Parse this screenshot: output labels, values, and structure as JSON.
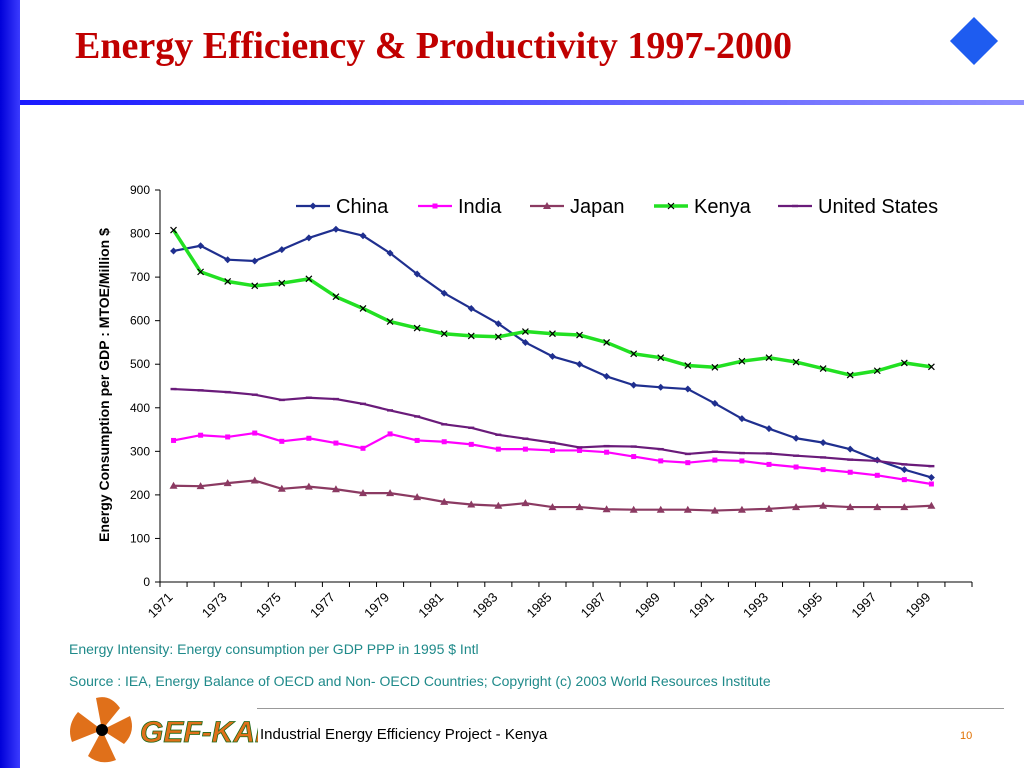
{
  "slide": {
    "title": "Energy Efficiency & Productivity 1997-2000",
    "note1": "Energy Intensity: Energy consumption per GDP PPP in 1995 $ Intl",
    "note2": "Source : IEA, Energy Balance of OECD and Non- OECD Countries; Copyright (c) 2003 World Resources Institute",
    "footer": "Industrial Energy Efficiency Project - Kenya",
    "page_number": "10",
    "logo_text": "GEF-KAM"
  },
  "chart_data": {
    "type": "line",
    "ylabel": "Energy Consumption per GDP : MTOE/Million $",
    "ylim": [
      0,
      900
    ],
    "yticks": [
      0,
      100,
      200,
      300,
      400,
      500,
      600,
      700,
      800,
      900
    ],
    "x": [
      1971,
      1972,
      1973,
      1974,
      1975,
      1976,
      1977,
      1978,
      1979,
      1980,
      1981,
      1982,
      1983,
      1984,
      1985,
      1986,
      1987,
      1988,
      1989,
      1990,
      1991,
      1992,
      1993,
      1994,
      1995,
      1996,
      1997,
      1998,
      1999,
      2000
    ],
    "xtick_labels": [
      "1971",
      "1973",
      "1975",
      "1977",
      "1979",
      "1981",
      "1983",
      "1985",
      "1987",
      "1989",
      "1991",
      "1993",
      "1995",
      "1997",
      "1999"
    ],
    "legend_position": "top",
    "grid": false,
    "series": [
      {
        "name": "China",
        "color": "#1f2f8f",
        "marker": "diamond",
        "values": [
          760,
          772,
          740,
          737,
          763,
          790,
          810,
          795,
          755,
          707,
          663,
          628,
          593,
          550,
          518,
          500,
          472,
          452,
          447,
          443,
          410,
          375,
          352,
          330,
          320,
          305,
          280,
          258,
          240,
          null
        ]
      },
      {
        "name": "India",
        "color": "#ff00ff",
        "marker": "square",
        "values": [
          325,
          337,
          333,
          342,
          323,
          330,
          319,
          307,
          340,
          325,
          322,
          316,
          305,
          305,
          302,
          302,
          298,
          288,
          278,
          274,
          280,
          278,
          270,
          264,
          258,
          252,
          245,
          235,
          225,
          null
        ]
      },
      {
        "name": "Japan",
        "color": "#8b3a62",
        "marker": "triangle",
        "values": [
          221,
          220,
          227,
          233,
          214,
          219,
          213,
          204,
          204,
          195,
          184,
          178,
          175,
          181,
          172,
          172,
          167,
          166,
          166,
          166,
          164,
          166,
          168,
          172,
          175,
          172,
          172,
          172,
          175,
          null
        ]
      },
      {
        "name": "Kenya",
        "color": "#22e022",
        "marker": "x",
        "values": [
          808,
          712,
          690,
          680,
          686,
          696,
          655,
          628,
          598,
          583,
          570,
          565,
          563,
          575,
          570,
          567,
          550,
          524,
          515,
          497,
          493,
          507,
          515,
          505,
          490,
          475,
          485,
          503,
          494,
          null
        ]
      },
      {
        "name": "United States",
        "color": "#6a1b7a",
        "marker": "dash",
        "values": [
          443,
          440,
          436,
          430,
          418,
          423,
          420,
          409,
          394,
          380,
          362,
          354,
          338,
          329,
          320,
          309,
          312,
          311,
          305,
          294,
          299,
          296,
          295,
          290,
          286,
          281,
          278,
          270,
          266,
          null
        ]
      }
    ]
  }
}
